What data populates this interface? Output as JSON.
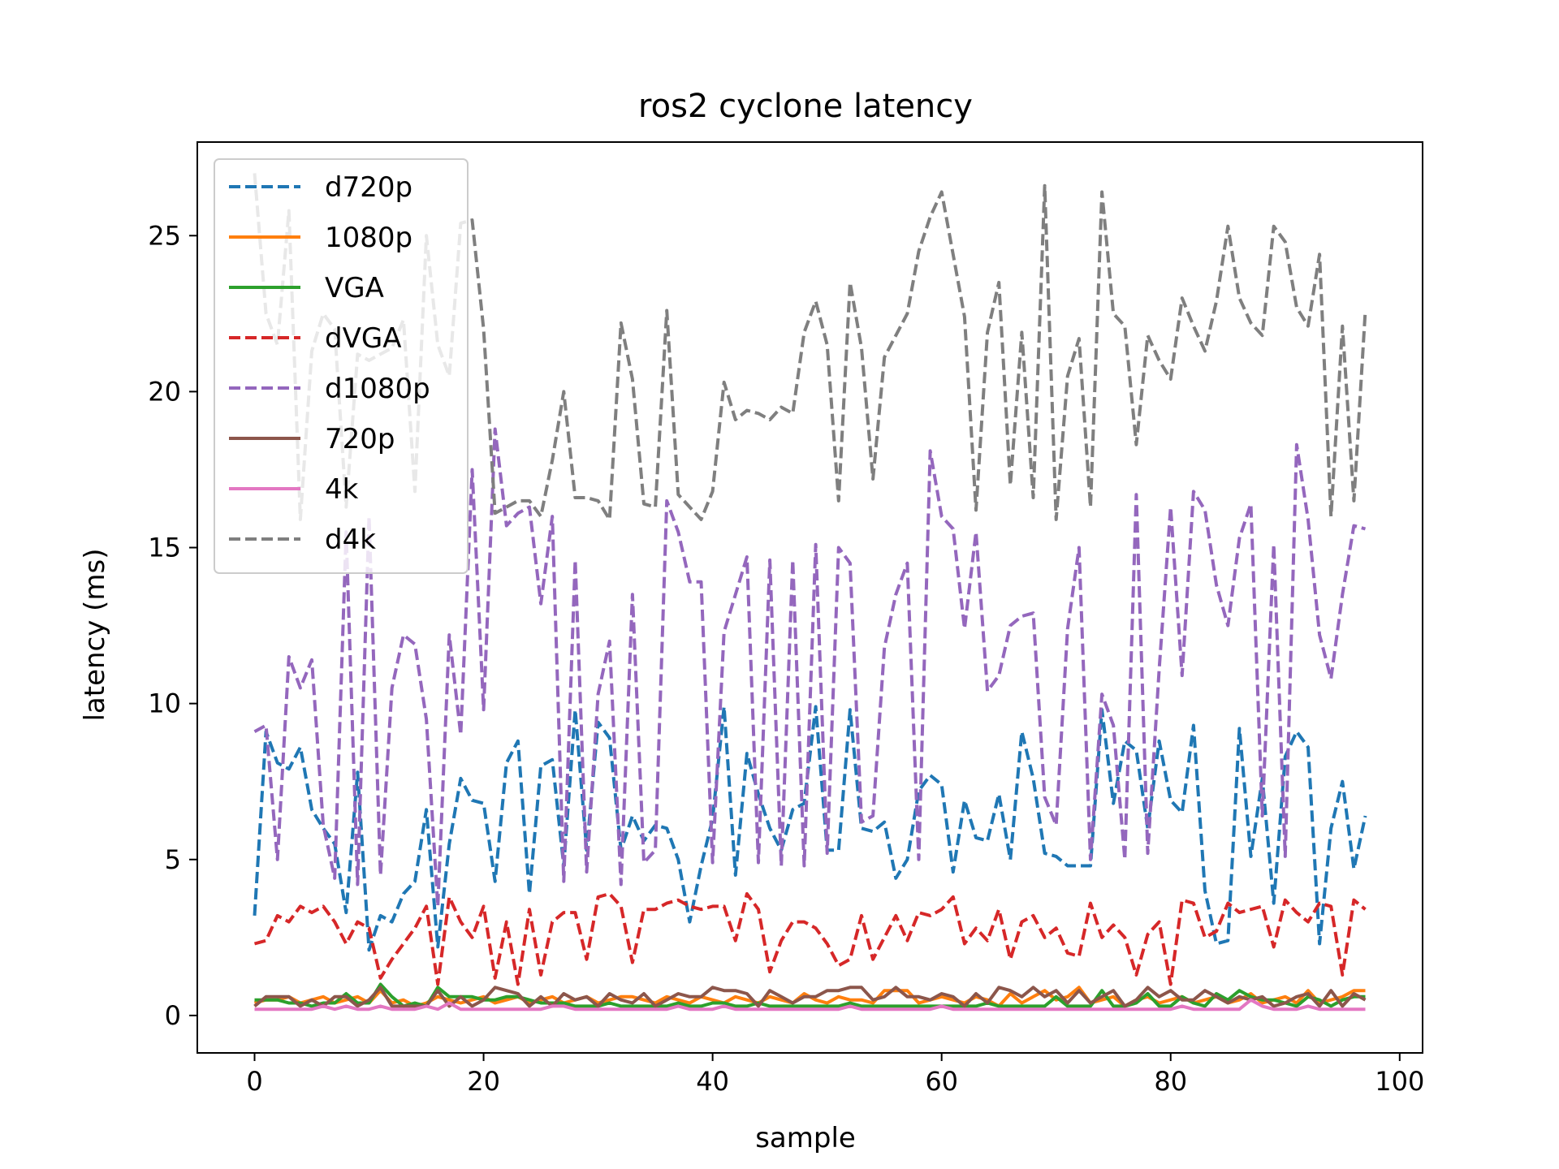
{
  "chart_data": {
    "type": "line",
    "title": "ros2 cyclone latency",
    "xlabel": "sample",
    "ylabel": "latency (ms)",
    "xlim": [
      -5,
      102
    ],
    "ylim": [
      -1.2,
      28
    ],
    "xticks": [
      0,
      20,
      40,
      60,
      80,
      100
    ],
    "yticks": [
      0,
      5,
      10,
      15,
      20,
      25
    ],
    "grid": false,
    "legend_position": "top-left",
    "series": [
      {
        "name": "d720p",
        "color": "#1f77b4",
        "dashed": true,
        "values": [
          3.2,
          9.1,
          8.1,
          7.9,
          8.6,
          6.6,
          6.0,
          5.5,
          3.3,
          7.8,
          2.1,
          3.2,
          3.0,
          3.9,
          4.3,
          6.6,
          2.2,
          5.5,
          7.6,
          6.9,
          6.8,
          4.3,
          8.1,
          8.8,
          3.9,
          8.0,
          8.2,
          4.8,
          9.8,
          5.3,
          9.4,
          8.9,
          5.3,
          6.4,
          5.6,
          6.1,
          6.0,
          5.0,
          3.0,
          4.8,
          6.3,
          9.9,
          4.5,
          8.4,
          7.1,
          6.0,
          5.3,
          6.6,
          6.8,
          9.9,
          5.3,
          5.3,
          9.8,
          6.0,
          5.9,
          6.2,
          4.4,
          5.0,
          7.2,
          7.7,
          7.4,
          4.6,
          6.9,
          5.7,
          5.6,
          7.1,
          5.0,
          9.1,
          7.6,
          5.2,
          5.1,
          4.8,
          4.8,
          4.8,
          9.8,
          6.8,
          8.8,
          8.5,
          6.0,
          8.8,
          6.9,
          6.5,
          9.3,
          4.0,
          2.3,
          2.4,
          9.2,
          5.1,
          7.6,
          3.6,
          8.3,
          9.1,
          8.6,
          2.3,
          6.0,
          7.5,
          4.7,
          6.4
        ]
      },
      {
        "name": "1080p",
        "color": "#ff7f0e",
        "dashed": false,
        "values": [
          0.4,
          0.5,
          0.5,
          0.6,
          0.4,
          0.5,
          0.6,
          0.4,
          0.5,
          0.6,
          0.4,
          0.8,
          0.4,
          0.5,
          0.3,
          0.4,
          0.6,
          0.5,
          0.4,
          0.5,
          0.6,
          0.4,
          0.5,
          0.6,
          0.4,
          0.5,
          0.6,
          0.4,
          0.5,
          0.6,
          0.4,
          0.5,
          0.6,
          0.6,
          0.5,
          0.4,
          0.6,
          0.5,
          0.4,
          0.6,
          0.5,
          0.4,
          0.6,
          0.5,
          0.4,
          0.6,
          0.5,
          0.4,
          0.7,
          0.5,
          0.4,
          0.6,
          0.5,
          0.5,
          0.4,
          0.8,
          0.8,
          0.8,
          0.4,
          0.5,
          0.6,
          0.5,
          0.4,
          0.6,
          0.5,
          0.3,
          0.7,
          0.4,
          0.6,
          0.8,
          0.5,
          0.6,
          0.9,
          0.4,
          0.5,
          0.6,
          0.3,
          0.5,
          0.6,
          0.4,
          0.5,
          0.6,
          0.4,
          0.5,
          0.6,
          0.4,
          0.5,
          0.7,
          0.4,
          0.5,
          0.6,
          0.4,
          0.8,
          0.4,
          0.5,
          0.6,
          0.8,
          0.8
        ]
      },
      {
        "name": "VGA",
        "color": "#2ca02c",
        "dashed": false,
        "values": [
          0.5,
          0.5,
          0.5,
          0.4,
          0.4,
          0.3,
          0.4,
          0.4,
          0.7,
          0.4,
          0.4,
          1.0,
          0.6,
          0.3,
          0.4,
          0.3,
          0.9,
          0.6,
          0.6,
          0.6,
          0.5,
          0.5,
          0.6,
          0.6,
          0.5,
          0.4,
          0.4,
          0.4,
          0.3,
          0.3,
          0.3,
          0.4,
          0.3,
          0.3,
          0.3,
          0.3,
          0.3,
          0.4,
          0.3,
          0.3,
          0.4,
          0.4,
          0.3,
          0.3,
          0.4,
          0.3,
          0.3,
          0.3,
          0.3,
          0.3,
          0.3,
          0.3,
          0.4,
          0.3,
          0.3,
          0.3,
          0.3,
          0.3,
          0.3,
          0.3,
          0.3,
          0.3,
          0.3,
          0.3,
          0.4,
          0.3,
          0.3,
          0.3,
          0.3,
          0.3,
          0.6,
          0.3,
          0.3,
          0.3,
          0.8,
          0.3,
          0.3,
          0.4,
          0.7,
          0.3,
          0.3,
          0.6,
          0.4,
          0.3,
          0.7,
          0.5,
          0.8,
          0.6,
          0.5,
          0.5,
          0.4,
          0.3,
          0.6,
          0.5,
          0.3,
          0.5,
          0.6,
          0.6
        ]
      },
      {
        "name": "dVGA",
        "color": "#d62728",
        "dashed": true,
        "values": [
          2.3,
          2.4,
          3.2,
          3.0,
          3.5,
          3.3,
          3.5,
          3.0,
          2.3,
          3.0,
          2.8,
          1.2,
          1.8,
          2.3,
          2.8,
          3.5,
          1.0,
          3.8,
          3.0,
          2.5,
          3.5,
          1.2,
          3.0,
          1.0,
          3.4,
          1.3,
          3.0,
          3.3,
          3.3,
          1.8,
          3.8,
          3.9,
          3.5,
          1.7,
          3.4,
          3.4,
          3.6,
          3.7,
          3.5,
          3.4,
          3.5,
          3.5,
          2.4,
          3.9,
          3.4,
          1.4,
          2.4,
          3.0,
          3.0,
          2.8,
          2.3,
          1.6,
          1.8,
          3.2,
          1.8,
          2.5,
          3.2,
          2.4,
          3.3,
          3.2,
          3.4,
          3.8,
          2.3,
          2.8,
          2.4,
          3.4,
          1.8,
          3.0,
          3.2,
          2.5,
          2.8,
          2.0,
          1.9,
          3.6,
          2.5,
          2.9,
          2.5,
          1.3,
          2.6,
          3.0,
          1.0,
          3.7,
          3.6,
          2.5,
          2.7,
          3.6,
          3.3,
          3.4,
          3.5,
          2.2,
          3.7,
          3.3,
          3.0,
          3.6,
          3.5,
          1.3,
          3.7,
          3.4
        ]
      },
      {
        "name": "d1080p",
        "color": "#9467bd",
        "dashed": true,
        "values": [
          9.1,
          9.3,
          5.0,
          11.5,
          10.5,
          11.4,
          6.1,
          4.4,
          15.5,
          4.2,
          16.0,
          4.5,
          10.5,
          12.2,
          11.9,
          9.5,
          3.5,
          12.2,
          9.0,
          17.5,
          9.8,
          18.8,
          15.7,
          16.1,
          16.3,
          13.2,
          16.0,
          4.3,
          14.6,
          4.6,
          10.3,
          12.0,
          4.2,
          13.5,
          4.9,
          5.3,
          16.5,
          15.5,
          13.9,
          13.9,
          4.9,
          12.3,
          13.5,
          14.7,
          4.9,
          14.6,
          4.8,
          14.6,
          4.8,
          15.1,
          5.2,
          15.0,
          14.5,
          6.2,
          6.4,
          11.8,
          13.5,
          14.5,
          5.0,
          18.1,
          16.0,
          15.6,
          12.4,
          15.5,
          10.4,
          10.9,
          12.5,
          12.8,
          12.9,
          7.0,
          6.1,
          12.4,
          15.0,
          5.0,
          10.3,
          9.3,
          5.0,
          16.7,
          5.2,
          11.1,
          16.3,
          10.9,
          16.8,
          16.2,
          13.8,
          12.5,
          15.3,
          16.4,
          6.4,
          15.1,
          5.1,
          18.3,
          15.9,
          12.2,
          10.8,
          13.5,
          15.7,
          15.6
        ]
      },
      {
        "name": "720p",
        "color": "#8c564b",
        "dashed": false,
        "values": [
          0.3,
          0.6,
          0.6,
          0.6,
          0.3,
          0.5,
          0.3,
          0.6,
          0.6,
          0.3,
          0.5,
          0.9,
          0.3,
          0.3,
          0.3,
          0.3,
          0.8,
          0.3,
          0.6,
          0.3,
          0.5,
          0.9,
          0.8,
          0.7,
          0.3,
          0.6,
          0.3,
          0.7,
          0.5,
          0.6,
          0.3,
          0.7,
          0.5,
          0.4,
          0.7,
          0.3,
          0.5,
          0.7,
          0.6,
          0.6,
          0.9,
          0.8,
          0.8,
          0.7,
          0.3,
          0.8,
          0.6,
          0.4,
          0.6,
          0.6,
          0.8,
          0.8,
          0.9,
          0.9,
          0.5,
          0.6,
          0.9,
          0.6,
          0.6,
          0.5,
          0.7,
          0.6,
          0.3,
          0.7,
          0.4,
          0.9,
          0.8,
          0.6,
          0.9,
          0.6,
          0.8,
          0.4,
          0.8,
          0.4,
          0.6,
          0.8,
          0.3,
          0.5,
          0.9,
          0.6,
          0.8,
          0.5,
          0.5,
          0.8,
          0.6,
          0.4,
          0.6,
          0.5,
          0.6,
          0.3,
          0.4,
          0.6,
          0.7,
          0.3,
          0.8,
          0.3,
          0.7,
          0.5
        ]
      },
      {
        "name": "4k",
        "color": "#e377c2",
        "dashed": false,
        "values": [
          0.2,
          0.2,
          0.2,
          0.2,
          0.2,
          0.2,
          0.3,
          0.2,
          0.3,
          0.2,
          0.2,
          0.3,
          0.2,
          0.2,
          0.2,
          0.3,
          0.2,
          0.4,
          0.2,
          0.2,
          0.2,
          0.2,
          0.2,
          0.2,
          0.2,
          0.2,
          0.3,
          0.3,
          0.2,
          0.2,
          0.2,
          0.2,
          0.2,
          0.2,
          0.2,
          0.2,
          0.2,
          0.3,
          0.2,
          0.2,
          0.2,
          0.3,
          0.2,
          0.2,
          0.2,
          0.2,
          0.2,
          0.2,
          0.2,
          0.2,
          0.2,
          0.2,
          0.3,
          0.2,
          0.2,
          0.2,
          0.2,
          0.2,
          0.2,
          0.2,
          0.3,
          0.2,
          0.2,
          0.2,
          0.2,
          0.2,
          0.2,
          0.2,
          0.2,
          0.2,
          0.2,
          0.2,
          0.2,
          0.2,
          0.2,
          0.2,
          0.2,
          0.2,
          0.2,
          0.2,
          0.2,
          0.3,
          0.2,
          0.2,
          0.2,
          0.2,
          0.2,
          0.5,
          0.3,
          0.2,
          0.2,
          0.2,
          0.3,
          0.2,
          0.2,
          0.2,
          0.2,
          0.2
        ]
      },
      {
        "name": "d4k",
        "color": "#7f7f7f",
        "dashed": true,
        "values": [
          27.0,
          22.5,
          21.5,
          25.8,
          15.9,
          21.3,
          22.5,
          22.0,
          16.3,
          21.2,
          21.0,
          21.2,
          21.4,
          22.3,
          16.8,
          25.0,
          21.5,
          20.5,
          25.4,
          25.5,
          22.0,
          16.1,
          16.3,
          16.5,
          16.5,
          16.0,
          17.8,
          20.0,
          16.6,
          16.6,
          16.5,
          15.9,
          22.2,
          20.4,
          16.4,
          16.3,
          22.6,
          16.7,
          16.3,
          15.9,
          16.8,
          20.3,
          19.1,
          19.4,
          19.3,
          19.1,
          19.5,
          19.3,
          21.9,
          22.9,
          21.5,
          16.5,
          23.5,
          21.4,
          17.2,
          21.1,
          21.8,
          22.5,
          24.5,
          25.6,
          26.4,
          24.4,
          22.4,
          16.2,
          21.9,
          23.5,
          17.0,
          21.9,
          16.6,
          26.6,
          15.9,
          20.5,
          21.7,
          16.3,
          26.4,
          22.5,
          22.1,
          18.3,
          21.8,
          21.0,
          20.4,
          23.0,
          22.1,
          21.3,
          22.9,
          25.3,
          23.0,
          22.2,
          21.8,
          25.3,
          24.8,
          22.7,
          22.1,
          24.4,
          16.0,
          22.1,
          16.5,
          22.6
        ]
      }
    ]
  }
}
